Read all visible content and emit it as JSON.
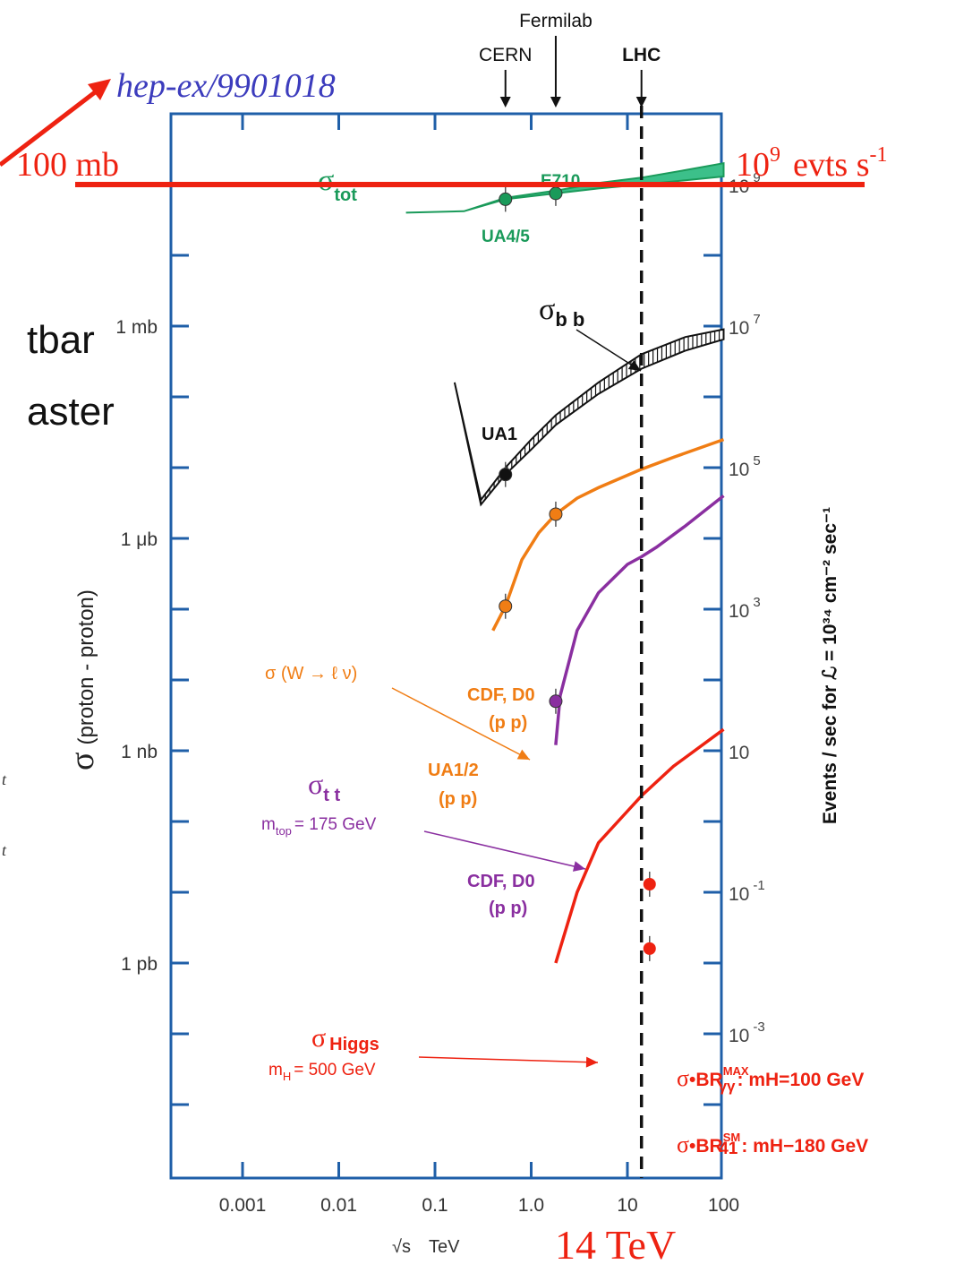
{
  "annotations": {
    "reference": "hep-ex/9901018",
    "mb_line": "100 mb",
    "rate": "10",
    "rate_exp": "9",
    "rate_unit": "evts s",
    "rate_unit_exp": "-1",
    "energy": "14 TeV",
    "cut_text_1": "tbar",
    "cut_text_2": "aster",
    "cut_text_3": "t",
    "cut_text_4": "t"
  },
  "colors": {
    "axis": "#1f5fa8",
    "annotation": "#ee2211",
    "reference": "#3c3cbd",
    "total": "#1a9a5a",
    "total_fill": "#3cc08a",
    "bbbar": "#111111",
    "w": "#f07d14",
    "top": "#8a2fa0",
    "higgs": "#ee2211",
    "dashed": "#111111"
  },
  "chart_data": {
    "type": "line",
    "x_scale": "log",
    "y_scale": "log",
    "xlim": [
      0.0001,
      100
    ],
    "xlabel": "TeV",
    "xlabel_prefix": "√s",
    "ylabel_sigma": "σ",
    "ylabel": "(proton - proton)",
    "ylabel_right": "Events / sec for ℒ = 10³⁴ cm⁻² sec⁻¹",
    "x_ticks": [
      {
        "v": 0.001,
        "label": "0.001"
      },
      {
        "v": 0.01,
        "label": "0.01"
      },
      {
        "v": 0.1,
        "label": "0.1"
      },
      {
        "v": 1,
        "label": "1.0"
      },
      {
        "v": 10,
        "label": "10"
      },
      {
        "v": 100,
        "label": "100"
      }
    ],
    "y_ticks_left": [
      {
        "decade": 0,
        "label": "1 mb"
      },
      {
        "decade": -3,
        "label": "1 μb"
      },
      {
        "decade": -6,
        "label": "1 nb"
      },
      {
        "decade": -9,
        "label": "1 pb"
      }
    ],
    "y_ticks_right": [
      {
        "decade": 2,
        "base": "10",
        "exp": "9"
      },
      {
        "decade": 0,
        "base": "10",
        "exp": "7"
      },
      {
        "decade": -2,
        "base": "10",
        "exp": "5"
      },
      {
        "decade": -4,
        "base": "10",
        "exp": "3"
      },
      {
        "decade": -6,
        "base": "10",
        "exp": ""
      },
      {
        "decade": -8,
        "base": "10",
        "exp": "-1"
      },
      {
        "decade": -10,
        "base": "10",
        "exp": "-3"
      }
    ],
    "colliders": [
      {
        "name": "CERN",
        "x": 0.54
      },
      {
        "name": "Fermilab",
        "x": 1.8
      },
      {
        "name": "LHC",
        "x": 14
      }
    ],
    "series": [
      {
        "name": "σ tot",
        "sub": "tot",
        "color_key": "total",
        "x": [
          0.05,
          0.2,
          0.54,
          1.8,
          5,
          14,
          40,
          100
        ],
        "y": [
          0.04,
          0.042,
          0.062,
          0.075,
          0.088,
          0.1,
          0.115,
          0.13
        ],
        "band": [
          0.04,
          0.042,
          0.065,
          0.082,
          0.105,
          0.125,
          0.16,
          0.2
        ]
      },
      {
        "name": "σ b b",
        "sub": "b b",
        "color_key": "bbbar",
        "x": [
          0.16,
          0.3,
          0.54,
          1.0,
          1.8,
          5,
          14,
          40,
          100
        ],
        "y": [
          0.00016,
          3e-06,
          8e-06,
          1.8e-05,
          4e-05,
          0.00011,
          0.00025,
          0.00045,
          0.00065
        ],
        "band": [
          0.00016,
          3.5e-06,
          1e-05,
          2.5e-05,
          5.5e-05,
          0.00016,
          0.0004,
          0.0007,
          0.0009
        ]
      },
      {
        "name": "σ(W → ℓν)",
        "color_key": "w",
        "x": [
          0.4,
          0.54,
          0.8,
          1.2,
          1.8,
          3,
          5,
          10,
          14,
          30,
          100
        ],
        "y": [
          5e-08,
          1.1e-07,
          5e-07,
          1.2e-06,
          2.2e-06,
          3.7e-06,
          5.2e-06,
          7.8e-06,
          9.5e-06,
          1.4e-05,
          2.5e-05
        ]
      },
      {
        "name": "σ t t",
        "sub": "t t",
        "mass_note": "m top = 175 GeV",
        "color_key": "top",
        "x": [
          1.8,
          2,
          3,
          5,
          10,
          14,
          20,
          40,
          100
        ],
        "y": [
          1.2e-09,
          6e-09,
          5e-08,
          1.7e-07,
          4.3e-07,
          5.5e-07,
          7.5e-07,
          1.5e-06,
          4e-06
        ]
      },
      {
        "name": "σ Higgs",
        "mass_note": "m H = 500 GeV",
        "color_key": "higgs",
        "x": [
          1.8,
          3,
          5,
          10,
          14,
          30,
          100
        ],
        "y": [
          1e-12,
          1e-11,
          5e-11,
          1.4e-10,
          2.3e-10,
          6e-10,
          2e-09
        ]
      }
    ],
    "data_points": [
      {
        "label": "UA4/5",
        "x": 0.54,
        "y": 0.062,
        "color_key": "total"
      },
      {
        "label": "E710",
        "x": 1.8,
        "y": 0.075,
        "color_key": "total"
      },
      {
        "label": "UA1",
        "x": 0.54,
        "y": 8e-06,
        "color_key": "bbbar"
      },
      {
        "label": "CDF, D0 (p p)",
        "x": 1.8,
        "y": 2.2e-06,
        "color_key": "w"
      },
      {
        "label": "UA1/2 (p p)",
        "x": 0.54,
        "y": 1.1e-07,
        "color_key": "w"
      },
      {
        "label": "CDF, D0 (p p)",
        "x": 1.8,
        "y": 5e-09,
        "color_key": "top"
      },
      {
        "label": "σ·BR γγ MAX: mH=100 GeV",
        "x": 17,
        "y": 1.3e-11,
        "color_key": "higgs"
      },
      {
        "label": "σ·BR 41 SM: mH=180 GeV",
        "x": 17,
        "y": 1.6e-12,
        "color_key": "higgs"
      }
    ],
    "point_labels": {
      "ua45": "UA4/5",
      "e710": "E710",
      "ua1": "UA1",
      "cdf_w_1": "CDF, D0",
      "cdf_w_2": "(p p)",
      "ua12_1": "UA1/2",
      "ua12_2": "(p p)",
      "cdf_t_1": "CDF, D0",
      "cdf_t_2": "(p p)",
      "br1_pre": "σ",
      "br1_mid": "•BR",
      "br1_sup": "MAX",
      "br1_sub": "γγ",
      "br1_post": ": mH=100 GeV",
      "br2_pre": "σ",
      "br2_mid": "•BR",
      "br2_sup": "SM",
      "br2_sub": "41",
      "br2_post": ": mH−180 GeV"
    },
    "series_labels": {
      "tot_sigma": "σ",
      "tot_sub": "tot",
      "bb_sigma": "σ",
      "bb_sub": "b b",
      "w_label": "σ (W → ℓ ν)",
      "tt_sigma": "σ",
      "tt_sub": "t t",
      "tt_mass": "m",
      "tt_mass_sub": "top",
      "tt_mass_val": "= 175 GeV",
      "h_sigma": "σ",
      "h_sub": "Higgs",
      "h_mass": "m",
      "h_mass_sub": "H",
      "h_mass_val": "= 500 GeV"
    }
  }
}
